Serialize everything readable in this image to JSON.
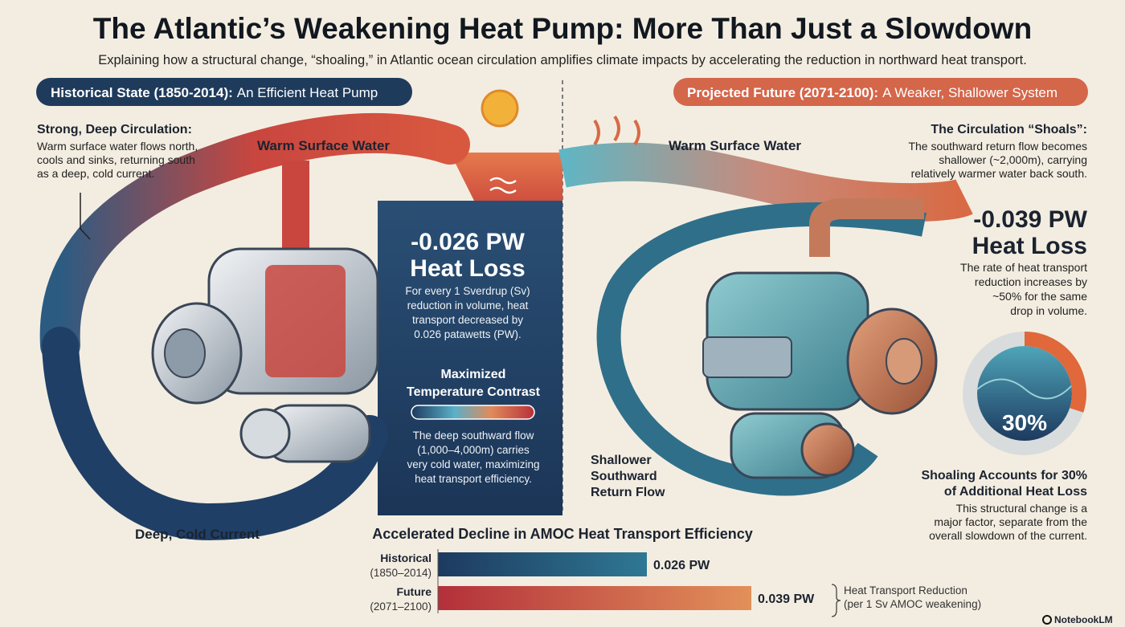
{
  "header": {
    "title": "The Atlantic’s Weakening Heat Pump: More Than Just a Slowdown",
    "subtitle": "Explaining how a structural change, “shoaling,” in Atlantic ocean circulation amplifies climate impacts by accelerating the reduction in northward heat transport."
  },
  "historical": {
    "label_bold": "Historical State (1850-2014):",
    "label_rest": "An Efficient Heat Pump",
    "heading": "Strong, Deep Circulation:",
    "text": [
      "Warm surface water flows north,",
      "cools and sinks, returning south",
      "as a deep, cold current."
    ],
    "surface_label": "Warm Surface Water",
    "deep_label": "Deep, Cold Current",
    "heat_loss_value": "-0.026 PW",
    "heat_loss_label": "Heat Loss",
    "heat_loss_text": [
      "For every 1 Sverdrup (Sv)",
      "reduction in volume, heat",
      "transport decreased by",
      "0.026 patawetts (PW)."
    ],
    "contrast_title": [
      "Maximized",
      "Temperature Contrast"
    ],
    "contrast_text": [
      "The deep southward flow",
      "(1,000–4,000m) carries",
      "very cold water, maximizing",
      "heat transport efficiency."
    ]
  },
  "future": {
    "label_bold": "Projected Future (2071-2100):",
    "label_rest": "A Weaker, Shallower System",
    "heading": "The Circulation “Shoals”:",
    "text": [
      "The southward return flow becomes",
      "shallower (~2,000m), carrying",
      "relatively warmer water back south."
    ],
    "surface_label": "Warm Surface Water",
    "return_label": [
      "Shallower",
      "Southward",
      "Return Flow"
    ],
    "heat_loss_value": "-0.039 PW",
    "heat_loss_label": "Heat Loss",
    "heat_loss_text": [
      "The rate of heat transport",
      "reduction increases by",
      "~50% for the same",
      "drop in volume."
    ]
  },
  "chart_data": [
    {
      "type": "bar",
      "title": "Accelerated Decline in AMOC Heat Transport Efficiency",
      "categories": [
        "Historical",
        "Future"
      ],
      "periods": [
        "(1850–2014)",
        "(2071–2100)"
      ],
      "values": [
        0.026,
        0.039
      ],
      "value_labels": [
        "0.026 PW",
        "0.039 PW"
      ],
      "colors": [
        [
          "#1d3a5f",
          "#2f7894"
        ],
        [
          "#b3303a",
          "#e2905a"
        ]
      ],
      "annotation": [
        "Heat Transport Reduction",
        "(per 1 Sv AMOC weakening)"
      ]
    },
    {
      "type": "pie",
      "title": [
        "Shoaling Accounts for 30%",
        "of Additional Heat Loss"
      ],
      "text": [
        "This structural change is a",
        "major factor, separate from the",
        "overall slowdown of the current."
      ],
      "values": [
        30
      ],
      "value_labels": [
        "30%"
      ],
      "colors": [
        "#e0683a"
      ]
    }
  ],
  "footer": {
    "brand": "NotebookLM"
  }
}
